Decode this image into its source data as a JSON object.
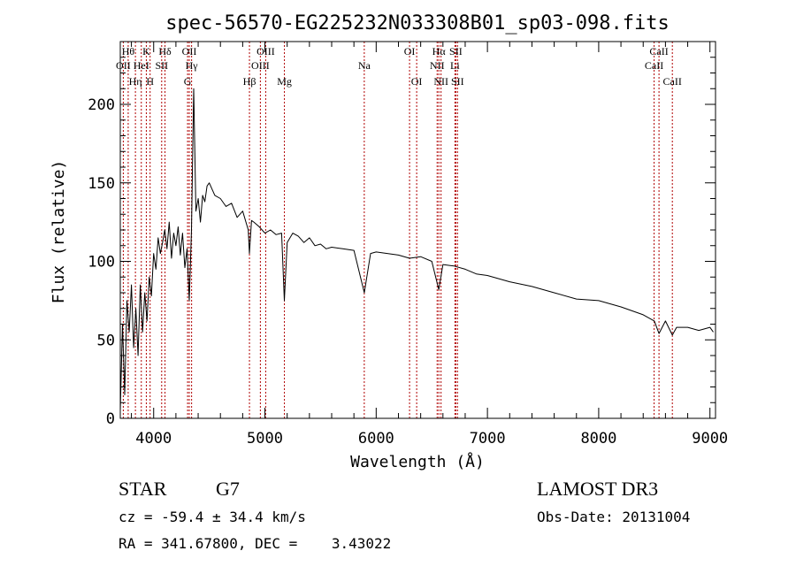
{
  "chart_data": {
    "type": "line",
    "title": "spec-56570-EG225232N033308B01_sp03-098.fits",
    "xlabel": "Wavelength (Å)",
    "ylabel": "Flux (relative)",
    "xlim": [
      3700,
      9050
    ],
    "ylim": [
      0,
      240
    ],
    "xticks": [
      4000,
      5000,
      6000,
      7000,
      8000,
      9000
    ],
    "yticks": [
      0,
      50,
      100,
      150,
      200
    ],
    "xtick_labels": [
      "4000",
      "5000",
      "6000",
      "7000",
      "8000",
      "9000"
    ],
    "ytick_labels": [
      "0",
      "50",
      "100",
      "150",
      "200"
    ],
    "series": [
      {
        "name": "flux",
        "x": [
          3700,
          3720,
          3740,
          3760,
          3780,
          3800,
          3820,
          3840,
          3860,
          3880,
          3900,
          3920,
          3940,
          3960,
          3980,
          4000,
          4020,
          4040,
          4060,
          4080,
          4100,
          4120,
          4140,
          4160,
          4180,
          4200,
          4220,
          4240,
          4260,
          4280,
          4300,
          4320,
          4340,
          4360,
          4380,
          4400,
          4420,
          4440,
          4460,
          4480,
          4500,
          4550,
          4600,
          4650,
          4700,
          4750,
          4800,
          4850,
          4861,
          4880,
          4900,
          4950,
          5000,
          5050,
          5100,
          5150,
          5175,
          5200,
          5250,
          5300,
          5350,
          5400,
          5450,
          5500,
          5550,
          5600,
          5700,
          5800,
          5893,
          5950,
          6000,
          6100,
          6200,
          6300,
          6400,
          6500,
          6563,
          6600,
          6700,
          6800,
          6900,
          7000,
          7200,
          7400,
          7600,
          7800,
          8000,
          8200,
          8400,
          8500,
          8542,
          8600,
          8662,
          8700,
          8800,
          8900,
          9000,
          9030
        ],
        "y": [
          5,
          60,
          15,
          75,
          55,
          85,
          45,
          70,
          40,
          85,
          55,
          80,
          62,
          90,
          78,
          105,
          95,
          115,
          105,
          112,
          120,
          108,
          125,
          102,
          118,
          110,
          122,
          104,
          118,
          96,
          108,
          75,
          120,
          210,
          132,
          140,
          125,
          142,
          138,
          148,
          150,
          142,
          140,
          135,
          137,
          128,
          132,
          120,
          105,
          126,
          125,
          122,
          118,
          120,
          117,
          118,
          75,
          112,
          118,
          116,
          112,
          115,
          110,
          111,
          108,
          109,
          108,
          107,
          80,
          105,
          106,
          105,
          104,
          102,
          103,
          100,
          82,
          98,
          97,
          95,
          92,
          91,
          87,
          84,
          80,
          76,
          75,
          71,
          66,
          62,
          54,
          62,
          53,
          58,
          58,
          56,
          58,
          55
        ]
      }
    ],
    "lines": [
      {
        "label": "OII",
        "x": 3727,
        "row": 2
      },
      {
        "label": "Hθ",
        "x": 3771,
        "row": 1
      },
      {
        "label": "Hη",
        "x": 3836,
        "row": 3
      },
      {
        "label": "HeI",
        "x": 3889,
        "row": 2
      },
      {
        "label": "K",
        "x": 3934,
        "row": 1
      },
      {
        "label": "H",
        "x": 3968,
        "row": 3
      },
      {
        "label": "SII",
        "x": 4072,
        "row": 2
      },
      {
        "label": "Hδ",
        "x": 4102,
        "row": 1
      },
      {
        "label": "G",
        "x": 4305,
        "row": 3
      },
      {
        "label": "OII",
        "x": 4320,
        "row": 1
      },
      {
        "label": "Hγ",
        "x": 4341,
        "row": 2
      },
      {
        "label": "Hβ",
        "x": 4861,
        "row": 3
      },
      {
        "label": "OIII",
        "x": 4959,
        "row": 2
      },
      {
        "label": "OIII",
        "x": 5007,
        "row": 1
      },
      {
        "label": "Mg",
        "x": 5175,
        "row": 3
      },
      {
        "label": "Na",
        "x": 5893,
        "row": 2
      },
      {
        "label": "OI",
        "x": 6300,
        "row": 1
      },
      {
        "label": "OI",
        "x": 6364,
        "row": 3
      },
      {
        "label": "NII",
        "x": 6548,
        "row": 2
      },
      {
        "label": "Hα",
        "x": 6563,
        "row": 1
      },
      {
        "label": "NII",
        "x": 6583,
        "row": 3
      },
      {
        "label": "Li",
        "x": 6708,
        "row": 2
      },
      {
        "label": "SII",
        "x": 6716,
        "row": 1
      },
      {
        "label": "SII",
        "x": 6731,
        "row": 3
      },
      {
        "label": "CaII",
        "x": 8498,
        "row": 2
      },
      {
        "label": "CaII",
        "x": 8542,
        "row": 1
      },
      {
        "label": "CaII",
        "x": 8662,
        "row": 3
      }
    ]
  },
  "info": {
    "class_label": "STAR",
    "subclass": "G7",
    "survey": "LAMOST DR3",
    "cz": "cz = -59.4 ± 34.4 km/s",
    "obs_date": "Obs-Date: 20131004",
    "radec": "RA = 341.67800, DEC =    3.43022"
  },
  "colors": {
    "axis": "#000000",
    "spectrum": "#000000",
    "line_marker": "#b00000"
  }
}
